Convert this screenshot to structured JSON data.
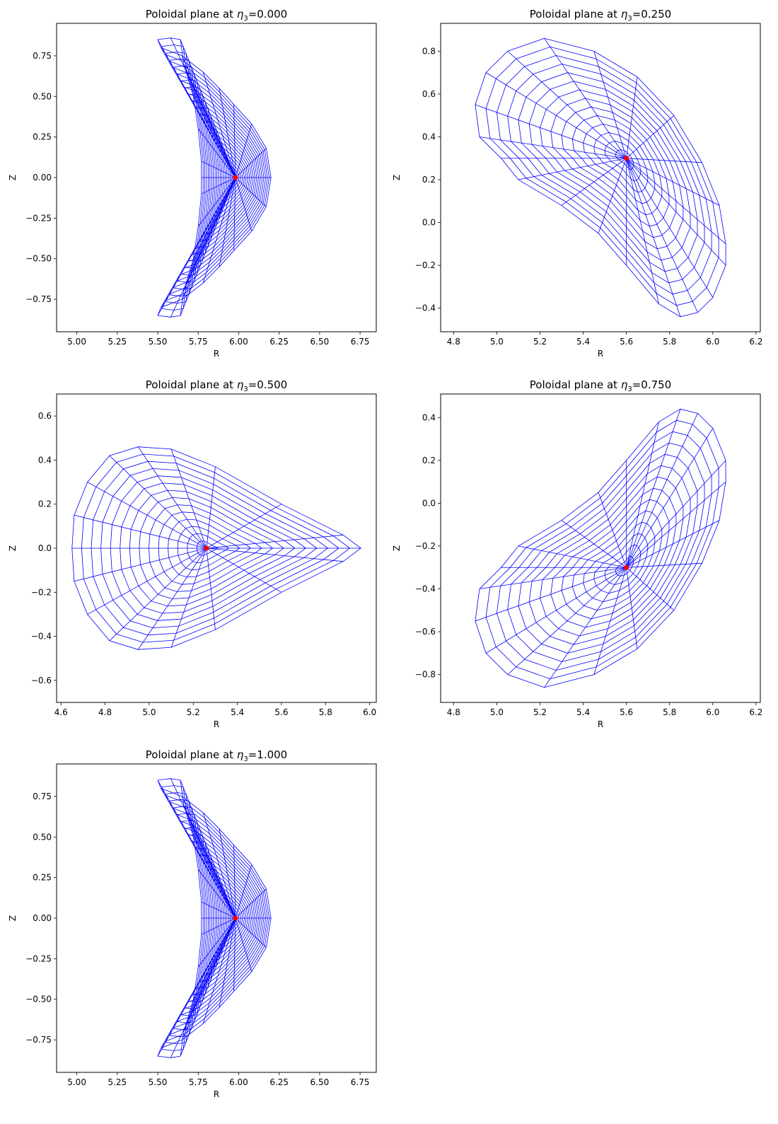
{
  "chart_data": [
    {
      "type": "mesh",
      "title": "Poloidal plane at η3=0.000",
      "title_prefix": "Poloidal plane at ",
      "title_symbol": "η",
      "title_subscript": "3",
      "title_value": "=0.000",
      "xlabel": "R",
      "ylabel": "Z",
      "xlim": [
        4.875,
        6.85
      ],
      "ylim": [
        -0.95,
        0.95
      ],
      "xticks": [
        "5.00",
        "5.25",
        "5.50",
        "5.75",
        "6.00",
        "6.25",
        "6.50",
        "6.75"
      ],
      "yticks": [
        "0.75",
        "0.50",
        "0.25",
        "0.00",
        "−0.25",
        "−0.50",
        "−0.75"
      ],
      "axis_point": [
        5.98,
        0.0
      ],
      "boundary": [
        [
          5.52,
          0.8
        ],
        [
          5.65,
          0.75
        ],
        [
          5.78,
          0.65
        ],
        [
          5.88,
          0.55
        ],
        [
          5.97,
          0.45
        ],
        [
          6.08,
          0.33
        ],
        [
          6.17,
          0.18
        ],
        [
          6.2,
          0.0
        ],
        [
          6.17,
          -0.18
        ],
        [
          6.08,
          -0.33
        ],
        [
          5.97,
          -0.45
        ],
        [
          5.88,
          -0.55
        ],
        [
          5.78,
          -0.65
        ],
        [
          5.65,
          -0.75
        ],
        [
          5.52,
          -0.8
        ],
        [
          5.5,
          -0.85
        ],
        [
          5.58,
          -0.86
        ],
        [
          5.64,
          -0.85
        ],
        [
          5.66,
          -0.7
        ],
        [
          5.72,
          -0.5
        ],
        [
          5.75,
          -0.3
        ],
        [
          5.77,
          -0.1
        ],
        [
          5.77,
          0.0
        ],
        [
          5.77,
          0.1
        ],
        [
          5.75,
          0.3
        ],
        [
          5.72,
          0.5
        ],
        [
          5.66,
          0.7
        ],
        [
          5.64,
          0.85
        ],
        [
          5.58,
          0.86
        ],
        [
          5.5,
          0.85
        ]
      ],
      "rings": 20,
      "spokes": 30
    },
    {
      "type": "mesh",
      "title": "Poloidal plane at η3=0.250",
      "title_prefix": "Poloidal plane at ",
      "title_symbol": "η",
      "title_subscript": "3",
      "title_value": "=0.250",
      "xlabel": "R",
      "ylabel": "Z",
      "xlim": [
        4.74,
        6.22
      ],
      "ylim": [
        -0.51,
        0.93
      ],
      "xticks": [
        "4.8",
        "5.0",
        "5.2",
        "5.4",
        "5.6",
        "5.8",
        "6.0",
        "6.2"
      ],
      "yticks": [
        "0.8",
        "0.6",
        "0.4",
        "0.2",
        "0.0",
        "−0.2",
        "−0.4"
      ],
      "axis_point": [
        5.6,
        0.3
      ],
      "boundary": [
        [
          5.22,
          0.86
        ],
        [
          5.45,
          0.8
        ],
        [
          5.65,
          0.68
        ],
        [
          5.82,
          0.5
        ],
        [
          5.95,
          0.28
        ],
        [
          6.03,
          0.08
        ],
        [
          6.06,
          -0.1
        ],
        [
          6.06,
          -0.2
        ],
        [
          6.0,
          -0.35
        ],
        [
          5.93,
          -0.42
        ],
        [
          5.85,
          -0.44
        ],
        [
          5.75,
          -0.38
        ],
        [
          5.6,
          -0.2
        ],
        [
          5.47,
          -0.05
        ],
        [
          5.3,
          0.08
        ],
        [
          5.1,
          0.2
        ],
        [
          5.02,
          0.3
        ],
        [
          4.92,
          0.4
        ],
        [
          4.9,
          0.55
        ],
        [
          4.95,
          0.7
        ],
        [
          5.05,
          0.8
        ]
      ],
      "rings": 14,
      "spokes": 24
    },
    {
      "type": "mesh",
      "title": "Poloidal plane at η3=0.500",
      "title_prefix": "Poloidal plane at ",
      "title_symbol": "η",
      "title_subscript": "3",
      "title_value": "=0.500",
      "xlabel": "R",
      "ylabel": "Z",
      "xlim": [
        4.58,
        6.03
      ],
      "ylim": [
        -0.7,
        0.7
      ],
      "xticks": [
        "4.6",
        "4.8",
        "5.0",
        "5.2",
        "5.4",
        "5.6",
        "5.8",
        "6.0"
      ],
      "yticks": [
        "0.6",
        "0.4",
        "0.2",
        "0.0",
        "−0.2",
        "−0.4",
        "−0.6"
      ],
      "axis_point": [
        5.26,
        0.0
      ],
      "boundary": [
        [
          5.96,
          0.0
        ],
        [
          5.88,
          0.06
        ],
        [
          5.6,
          0.2
        ],
        [
          5.3,
          0.37
        ],
        [
          5.1,
          0.45
        ],
        [
          4.95,
          0.46
        ],
        [
          4.82,
          0.42
        ],
        [
          4.72,
          0.3
        ],
        [
          4.66,
          0.15
        ],
        [
          4.65,
          0.0
        ],
        [
          4.66,
          -0.15
        ],
        [
          4.72,
          -0.3
        ],
        [
          4.82,
          -0.42
        ],
        [
          4.95,
          -0.46
        ],
        [
          5.1,
          -0.45
        ],
        [
          5.3,
          -0.37
        ],
        [
          5.6,
          -0.2
        ],
        [
          5.88,
          -0.06
        ]
      ],
      "rings": 14,
      "spokes": 30
    },
    {
      "type": "mesh",
      "title": "Poloidal plane at η3=0.750",
      "title_prefix": "Poloidal plane at ",
      "title_symbol": "η",
      "title_subscript": "3",
      "title_value": "=0.750",
      "xlabel": "R",
      "ylabel": "Z",
      "xlim": [
        4.74,
        6.22
      ],
      "ylim": [
        -0.93,
        0.51
      ],
      "xticks": [
        "4.8",
        "5.0",
        "5.2",
        "5.4",
        "5.6",
        "5.8",
        "6.0",
        "6.2"
      ],
      "yticks": [
        "0.4",
        "0.2",
        "0.0",
        "−0.2",
        "−0.4",
        "−0.6",
        "−0.8"
      ],
      "axis_point": [
        5.6,
        -0.3
      ],
      "boundary": [
        [
          5.22,
          -0.86
        ],
        [
          5.45,
          -0.8
        ],
        [
          5.65,
          -0.68
        ],
        [
          5.82,
          -0.5
        ],
        [
          5.95,
          -0.28
        ],
        [
          6.03,
          -0.08
        ],
        [
          6.06,
          0.1
        ],
        [
          6.06,
          0.2
        ],
        [
          6.0,
          0.35
        ],
        [
          5.93,
          0.42
        ],
        [
          5.85,
          0.44
        ],
        [
          5.75,
          0.38
        ],
        [
          5.6,
          0.2
        ],
        [
          5.47,
          0.05
        ],
        [
          5.3,
          -0.08
        ],
        [
          5.1,
          -0.2
        ],
        [
          5.02,
          -0.3
        ],
        [
          4.92,
          -0.4
        ],
        [
          4.9,
          -0.55
        ],
        [
          4.95,
          -0.7
        ],
        [
          5.05,
          -0.8
        ]
      ],
      "rings": 14,
      "spokes": 24
    },
    {
      "type": "mesh",
      "title": "Poloidal plane at η3=1.000",
      "title_prefix": "Poloidal plane at ",
      "title_symbol": "η",
      "title_subscript": "3",
      "title_value": "=1.000",
      "xlabel": "R",
      "ylabel": "Z",
      "xlim": [
        4.875,
        6.85
      ],
      "ylim": [
        -0.95,
        0.95
      ],
      "xticks": [
        "5.00",
        "5.25",
        "5.50",
        "5.75",
        "6.00",
        "6.25",
        "6.50",
        "6.75"
      ],
      "yticks": [
        "0.75",
        "0.50",
        "0.25",
        "0.00",
        "−0.25",
        "−0.50",
        "−0.75"
      ],
      "axis_point": [
        5.98,
        0.0
      ],
      "boundary": [
        [
          5.52,
          0.8
        ],
        [
          5.65,
          0.75
        ],
        [
          5.78,
          0.65
        ],
        [
          5.88,
          0.55
        ],
        [
          5.97,
          0.45
        ],
        [
          6.08,
          0.33
        ],
        [
          6.17,
          0.18
        ],
        [
          6.2,
          0.0
        ],
        [
          6.17,
          -0.18
        ],
        [
          6.08,
          -0.33
        ],
        [
          5.97,
          -0.45
        ],
        [
          5.88,
          -0.55
        ],
        [
          5.78,
          -0.65
        ],
        [
          5.65,
          -0.75
        ],
        [
          5.52,
          -0.8
        ],
        [
          5.5,
          -0.85
        ],
        [
          5.58,
          -0.86
        ],
        [
          5.64,
          -0.85
        ],
        [
          5.66,
          -0.7
        ],
        [
          5.72,
          -0.5
        ],
        [
          5.75,
          -0.3
        ],
        [
          5.77,
          -0.1
        ],
        [
          5.77,
          0.0
        ],
        [
          5.77,
          0.1
        ],
        [
          5.75,
          0.3
        ],
        [
          5.72,
          0.5
        ],
        [
          5.66,
          0.7
        ],
        [
          5.64,
          0.85
        ],
        [
          5.58,
          0.86
        ],
        [
          5.5,
          0.85
        ]
      ],
      "rings": 20,
      "spokes": 30
    }
  ],
  "colors": {
    "mesh": "#0000ff",
    "axis_point": "#ff0000",
    "frame": "#000000"
  }
}
